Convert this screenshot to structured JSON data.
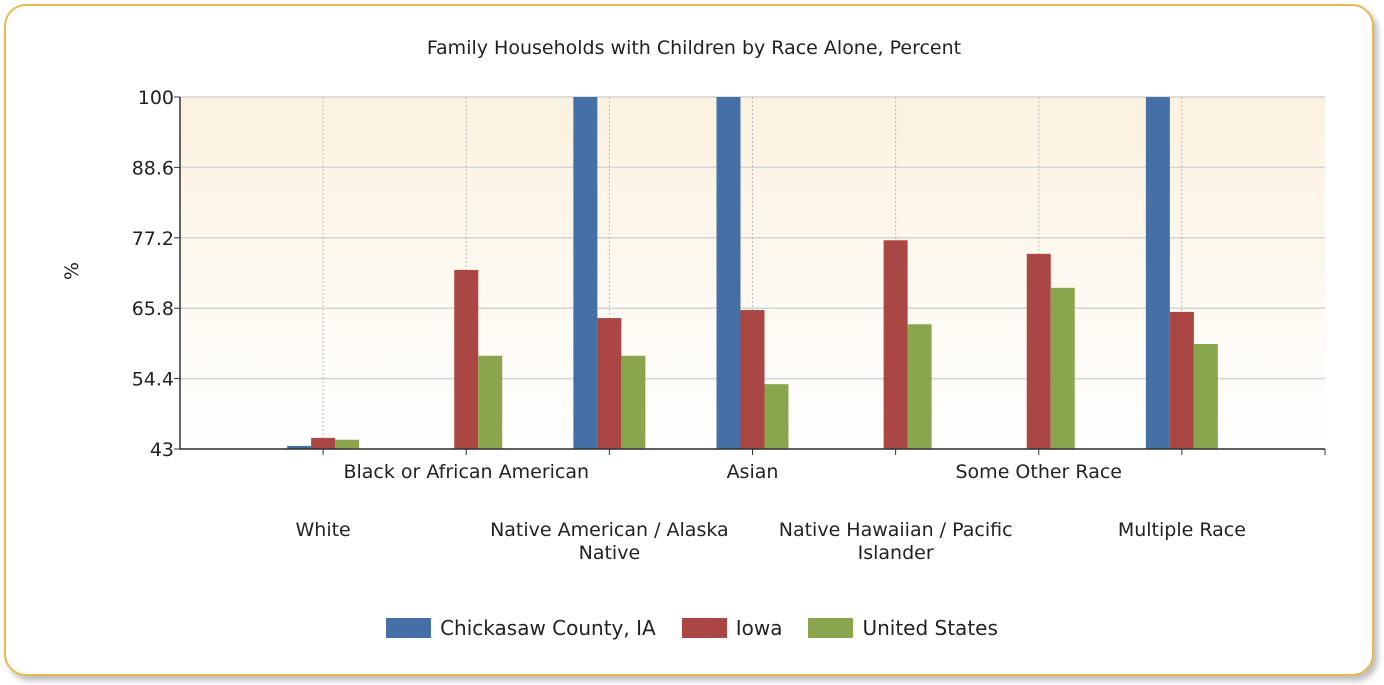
{
  "chart_data": {
    "type": "bar",
    "title": "Family Households with Children by Race Alone, Percent",
    "y_label": "%",
    "categories": [
      "White",
      "Black or African American",
      "Native American / Alaska Native",
      "Asian",
      "Native Hawaiian / Pacific Islander",
      "Some Other Race",
      "Multiple Race"
    ],
    "series": [
      {
        "name": "Chickasaw County, IA",
        "color": "#4470a5",
        "values": [
          43.5,
          null,
          100,
          100,
          null,
          null,
          100
        ]
      },
      {
        "name": "Iowa",
        "color": "#aa4643",
        "values": [
          44.8,
          72.0,
          64.2,
          65.5,
          76.8,
          74.6,
          65.2
        ]
      },
      {
        "name": "United States",
        "color": "#89a54e",
        "values": [
          44.5,
          58.1,
          58.1,
          53.5,
          63.2,
          69.1,
          60.0
        ]
      }
    ],
    "ylim": [
      43,
      100
    ],
    "yticks": [
      43,
      54.4,
      65.8,
      77.2,
      88.6,
      100
    ],
    "grid": true,
    "legend": "bottom"
  }
}
